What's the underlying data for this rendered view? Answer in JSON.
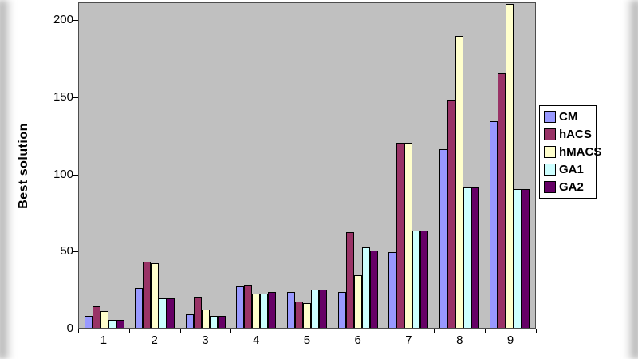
{
  "chart_data": {
    "type": "bar",
    "title": "",
    "xlabel": "",
    "ylabel": "Best solution",
    "categories": [
      "1",
      "2",
      "3",
      "4",
      "5",
      "6",
      "7",
      "8",
      "9"
    ],
    "series": [
      {
        "name": "CM",
        "color": "#9999FF",
        "values": [
          8,
          26,
          9,
          27,
          23,
          23,
          49,
          116,
          134
        ]
      },
      {
        "name": "hACS",
        "color": "#993366",
        "values": [
          14,
          43,
          20,
          28,
          17,
          62,
          120,
          148,
          165
        ]
      },
      {
        "name": "hMACS",
        "color": "#FFFFCC",
        "values": [
          11,
          42,
          12,
          22,
          16,
          34,
          120,
          189,
          210
        ]
      },
      {
        "name": "GA1",
        "color": "#CCFFFF",
        "values": [
          5,
          19,
          8,
          22,
          25,
          52,
          63,
          91,
          90
        ]
      },
      {
        "name": "GA2",
        "color": "#660066",
        "values": [
          5,
          19,
          8,
          23,
          25,
          50,
          63,
          91,
          90
        ]
      }
    ],
    "yticks": [
      0,
      50,
      100,
      150,
      200
    ],
    "ylim": [
      0,
      211
    ],
    "grid": false,
    "legend_position": "right",
    "plot_background": "#C0C0C0"
  }
}
